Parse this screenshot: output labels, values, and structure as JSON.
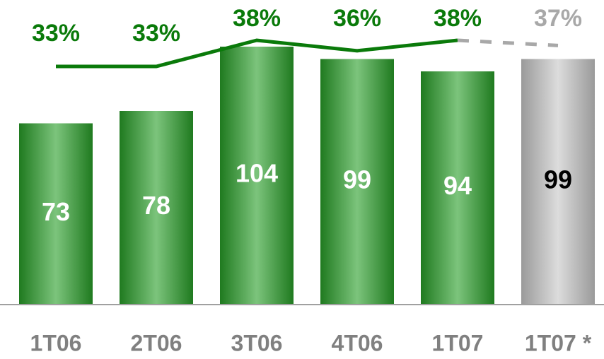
{
  "chart_data": {
    "type": "bar",
    "categories": [
      "1T06",
      "2T06",
      "3T06",
      "4T06",
      "1T07",
      "1T07 *"
    ],
    "series": [
      {
        "type": "bar",
        "values": [
          73,
          78,
          104,
          99,
          94,
          99
        ],
        "colors": [
          "#2e8b2e",
          "#2e8b2e",
          "#2e8b2e",
          "#2e8b2e",
          "#2e8b2e",
          "#a8a8a8"
        ],
        "label_colors": [
          "#ffffff",
          "#ffffff",
          "#ffffff",
          "#ffffff",
          "#ffffff",
          "#000000"
        ]
      },
      {
        "type": "line",
        "values": [
          33,
          33,
          38,
          36,
          38,
          37
        ],
        "value_labels": [
          "33%",
          "33%",
          "38%",
          "36%",
          "38%",
          "37%"
        ],
        "colors": [
          "#0a7a0a",
          "#0a7a0a",
          "#0a7a0a",
          "#0a7a0a",
          "#0a7a0a",
          "#a8a8a8"
        ]
      }
    ]
  }
}
